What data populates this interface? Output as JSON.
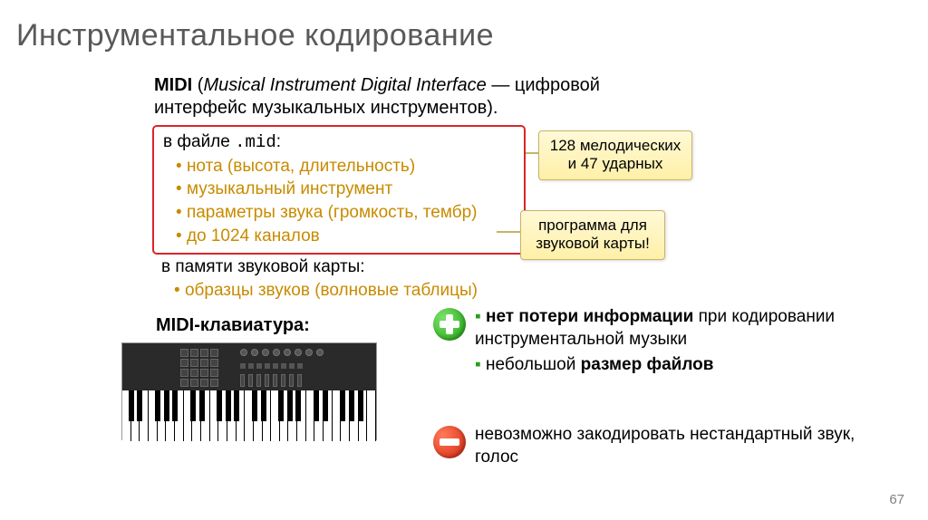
{
  "title": "Инструментальное кодирование",
  "midi": {
    "acronym": "MIDI",
    "open_paren": " (",
    "fullname": "Musical Instrument Digital Interface",
    "dash_translation": " — цифровой интерфейс музыкальных инструментов).",
    "indent_prefix": ""
  },
  "redbox": {
    "header_prefix": "в файле ",
    "header_file": ".mid",
    "header_suffix": ":",
    "items": [
      "нота (высота, длительность)",
      "музыкальный инструмент",
      "параметры звука (громкость, тембр)",
      "до 1024 каналов"
    ]
  },
  "callout1": "128 мелодических и 47 ударных",
  "callout2": "программа для звуковой карты!",
  "memory": {
    "header": "в памяти звуковой карты:",
    "item": "образцы звуков (волновые таблицы)"
  },
  "kbd_label": "MIDI-клавиатура:",
  "pros": {
    "line1_bold": "нет потери информации",
    "line1_rest": " при кодировании инструментальной музыки",
    "line2_prefix": "небольшой ",
    "line2_bold": "размер файлов"
  },
  "cons": "невозможно закодировать нестандартный звук, голос",
  "page_number": "67",
  "colors": {
    "title": "#595959",
    "red_border": "#d9262a",
    "orange_text": "#c88b00",
    "callout_bg_top": "#fff9d6",
    "callout_bg_bottom": "#fff0a8",
    "callout_border": "#c7b36a",
    "plus": "#1fa80f",
    "minus": "#d8260d",
    "bullet_green": "#2a9e1f"
  }
}
